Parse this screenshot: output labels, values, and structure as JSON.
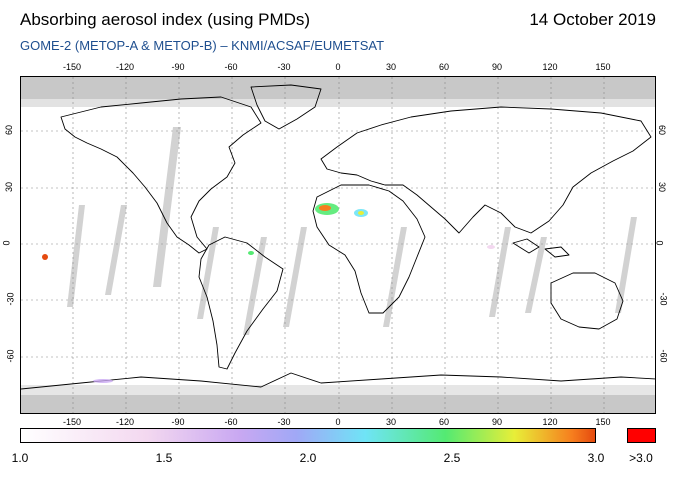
{
  "header": {
    "title": "Absorbing aerosol index (using PMDs)",
    "date": "14 October 2019",
    "subtitle": "GOME-2 (METOP-A & METOP-B)  –  KNMI/ACSAF/EUMETSAT"
  },
  "map": {
    "lon_ticks": [
      "-150",
      "-120",
      "-90",
      "-60",
      "-30",
      "0",
      "30",
      "60",
      "90",
      "120",
      "150"
    ],
    "lat_ticks": [
      "60",
      "30",
      "0",
      "-30",
      "-60"
    ],
    "no_data_color": "#c8c8c8",
    "coastline_color": "#000000"
  },
  "colorbar": {
    "labels": [
      "1.0",
      "1.5",
      "2.0",
      "2.5",
      "3.0"
    ],
    "over_label": ">3.0",
    "over_color": "#ff0000"
  }
}
